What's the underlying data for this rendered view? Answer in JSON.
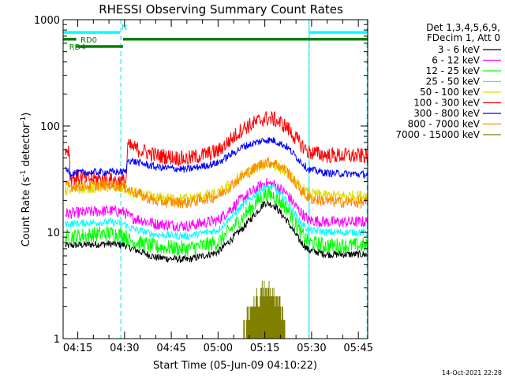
{
  "chart_data": {
    "type": "line",
    "title": "RHESSI Observing Summary Count Rates",
    "xlabel": "Start Time (05-Jun-09 04:10:22)",
    "ylabel_main": "Count Rate (s",
    "ylabel_exp1": "-1",
    "ylabel_mid": " detector",
    "ylabel_exp2": "-1",
    "ylabel_end": ")",
    "y_scale": "log",
    "ylim": [
      1,
      1000
    ],
    "xlim_minutes": [
      250.3,
      348.0
    ],
    "xticks": [
      {
        "label": "04:15",
        "value": 255
      },
      {
        "label": "04:30",
        "value": 270
      },
      {
        "label": "04:45",
        "value": 285
      },
      {
        "label": "05:00",
        "value": 300
      },
      {
        "label": "05:15",
        "value": 315
      },
      {
        "label": "05:30",
        "value": 330
      },
      {
        "label": "05:45",
        "value": 345
      }
    ],
    "yticks": [
      {
        "label": "1",
        "value": 1
      },
      {
        "label": "10",
        "value": 10
      },
      {
        "label": "100",
        "value": 100
      },
      {
        "label": "1000",
        "value": 1000
      }
    ],
    "legend_header": [
      "Det 1,3,4,5,6,9,",
      "FDecim 1, Att 0"
    ],
    "legend_position": "right",
    "series": [
      {
        "name": "3 - 6 keV",
        "color": "#000000",
        "values": [
          [
            251,
            7.5
          ],
          [
            265,
            7.8
          ],
          [
            270,
            7.6
          ],
          [
            271.5,
            7.2
          ],
          [
            280,
            5.8
          ],
          [
            290,
            5.5
          ],
          [
            300,
            6.5
          ],
          [
            308,
            11
          ],
          [
            315,
            19
          ],
          [
            318,
            18
          ],
          [
            322,
            13
          ],
          [
            326,
            8.5
          ],
          [
            329,
            6.8
          ],
          [
            335,
            6.2
          ],
          [
            348,
            6.2
          ]
        ]
      },
      {
        "name": "6 - 12 keV",
        "color": "#ff00ff",
        "values": [
          [
            251,
            15
          ],
          [
            265,
            16
          ],
          [
            270,
            15.5
          ],
          [
            271.5,
            14
          ],
          [
            280,
            12
          ],
          [
            290,
            11.5
          ],
          [
            300,
            13
          ],
          [
            308,
            21
          ],
          [
            315,
            29
          ],
          [
            318,
            28
          ],
          [
            322,
            23
          ],
          [
            326,
            16
          ],
          [
            329,
            13
          ],
          [
            335,
            12.5
          ],
          [
            348,
            12.5
          ]
        ]
      },
      {
        "name": "12 - 25 keV",
        "color": "#00ff00",
        "values": [
          [
            251,
            9
          ],
          [
            265,
            9.8
          ],
          [
            270,
            9.5
          ],
          [
            271.5,
            8.4
          ],
          [
            280,
            7.3
          ],
          [
            290,
            7
          ],
          [
            300,
            8
          ],
          [
            308,
            14
          ],
          [
            315,
            23
          ],
          [
            318,
            22
          ],
          [
            322,
            17
          ],
          [
            326,
            10.5
          ],
          [
            329,
            8
          ],
          [
            335,
            7.5
          ],
          [
            348,
            7.5
          ]
        ]
      },
      {
        "name": "25 - 50 keV",
        "color": "#00ffff",
        "values": [
          [
            251,
            12
          ],
          [
            265,
            12.5
          ],
          [
            270,
            12
          ],
          [
            271.5,
            11
          ],
          [
            280,
            9.5
          ],
          [
            290,
            9.2
          ],
          [
            300,
            10.5
          ],
          [
            308,
            18
          ],
          [
            315,
            27
          ],
          [
            318,
            26
          ],
          [
            322,
            20
          ],
          [
            326,
            13
          ],
          [
            329,
            10.5
          ],
          [
            335,
            10
          ],
          [
            348,
            10
          ]
        ]
      },
      {
        "name": "50 - 100 keV",
        "color": "#dddd00",
        "values": [
          [
            251,
            25
          ],
          [
            265,
            27
          ],
          [
            270,
            26
          ],
          [
            271.5,
            24
          ],
          [
            280,
            21
          ],
          [
            290,
            20.5
          ],
          [
            300,
            23
          ],
          [
            308,
            35
          ],
          [
            315,
            44
          ],
          [
            318,
            43
          ],
          [
            322,
            37
          ],
          [
            326,
            27
          ],
          [
            329,
            23
          ],
          [
            335,
            22
          ],
          [
            348,
            22
          ]
        ]
      },
      {
        "name": "100 - 300 keV",
        "color": "#ff0000",
        "values": [
          [
            251,
            60
          ],
          [
            252.3,
            60
          ],
          [
            252.5,
            33
          ],
          [
            265,
            31
          ],
          [
            270.5,
            30
          ],
          [
            271,
            65
          ],
          [
            280,
            53
          ],
          [
            290,
            49
          ],
          [
            300,
            58
          ],
          [
            308,
            95
          ],
          [
            315,
            118
          ],
          [
            318,
            116
          ],
          [
            322,
            98
          ],
          [
            326,
            70
          ],
          [
            329,
            57
          ],
          [
            335,
            53
          ],
          [
            348,
            52
          ]
        ]
      },
      {
        "name": "300 - 800 keV",
        "color": "#0000ff",
        "values": [
          [
            251,
            38
          ],
          [
            252.3,
            38
          ],
          [
            252.5,
            36
          ],
          [
            265,
            37
          ],
          [
            270.5,
            37
          ],
          [
            271,
            48
          ],
          [
            280,
            41
          ],
          [
            290,
            39
          ],
          [
            300,
            45
          ],
          [
            308,
            64
          ],
          [
            315,
            74
          ],
          [
            318,
            73
          ],
          [
            322,
            64
          ],
          [
            326,
            48
          ],
          [
            329,
            39
          ],
          [
            335,
            36
          ],
          [
            348,
            35
          ]
        ]
      },
      {
        "name": "800 - 7000 keV",
        "color": "#ff8800",
        "values": [
          [
            251,
            27
          ],
          [
            265,
            28
          ],
          [
            270,
            27
          ],
          [
            271.5,
            25
          ],
          [
            280,
            19.5
          ],
          [
            290,
            19
          ],
          [
            300,
            22
          ],
          [
            308,
            34
          ],
          [
            315,
            46
          ],
          [
            318,
            45
          ],
          [
            322,
            38
          ],
          [
            326,
            26
          ],
          [
            329,
            21
          ],
          [
            335,
            19.5
          ],
          [
            348,
            19
          ]
        ]
      },
      {
        "name": "7000 - 15000 keV",
        "color": "#808000",
        "values": [
          [
            308,
            1
          ],
          [
            310,
            1.8
          ],
          [
            314,
            2.7
          ],
          [
            317,
            2.7
          ],
          [
            321,
            1.8
          ],
          [
            322,
            1
          ]
        ]
      }
    ],
    "markers": {
      "dashed_lines_minutes": [
        250.3,
        268.8,
        329.2,
        347.8
      ],
      "solid_lines_minutes": [
        329.2
      ],
      "top_bars": [
        {
          "label": "",
          "color": "#00ffff",
          "from": 250.3,
          "to": 268.5,
          "y": 760
        },
        {
          "label": "RD0",
          "color": "#008000",
          "from": 250.3,
          "to": 254.5,
          "y": 655
        },
        {
          "label": "RD4",
          "color": "#008000",
          "from": 254.5,
          "to": 269.5,
          "y": 560
        },
        {
          "label": "",
          "color": "#008000",
          "from": 269.5,
          "to": 348,
          "y": 655
        },
        {
          "label": "",
          "color": "#00ffff",
          "from": 329.2,
          "to": 348,
          "y": 760
        }
      ],
      "n_label": "N",
      "n_minute": 270
    },
    "footer": "14-Oct-2021 22:28"
  },
  "colors": {
    "axis": "#000000",
    "marker_line": "#00e5ee"
  }
}
